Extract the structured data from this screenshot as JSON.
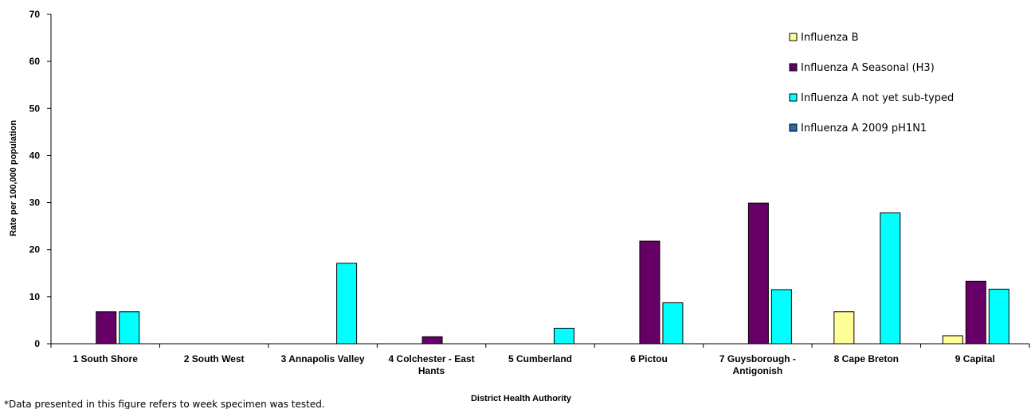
{
  "chart_data": {
    "type": "bar",
    "xlabel": "District Health Authority",
    "ylabel": "Rate per 100,000 population",
    "ylim": [
      0,
      70
    ],
    "yticks": [
      0,
      10,
      20,
      30,
      40,
      50,
      60,
      70
    ],
    "grid": false,
    "legend_position": "top-right",
    "categories": [
      "1 South Shore",
      "2 South West",
      "3 Annapolis Valley",
      "4 Colchester - East Hants",
      "5 Cumberland",
      "6 Pictou",
      "7 Guysborough - Antigonish",
      "8 Cape Breton",
      "9 Capital"
    ],
    "series": [
      {
        "name": "Influenza A 2009 pH1N1",
        "color": "#1f6eb4",
        "values": [
          0,
          0,
          0,
          0,
          0,
          0,
          0,
          0,
          0
        ]
      },
      {
        "name": "Influenza B",
        "color": "#ffff99",
        "values": [
          0,
          0,
          0,
          0,
          0,
          0,
          0,
          6.8,
          1.7
        ]
      },
      {
        "name": "Influenza A Seasonal (H3)",
        "color": "#660066",
        "values": [
          6.8,
          0,
          0,
          1.5,
          0,
          21.8,
          29.9,
          0,
          13.3
        ]
      },
      {
        "name": "Influenza A not yet sub-typed",
        "color": "#00ffff",
        "values": [
          6.8,
          0,
          17.1,
          0,
          3.3,
          8.7,
          11.5,
          27.8,
          11.6
        ]
      }
    ],
    "legend_order": [
      "Influenza B",
      "Influenza A Seasonal (H3)",
      "Influenza A not yet sub-typed",
      "Influenza A 2009 pH1N1"
    ]
  },
  "footnote": "*Data presented in this figure refers to week specimen was tested."
}
